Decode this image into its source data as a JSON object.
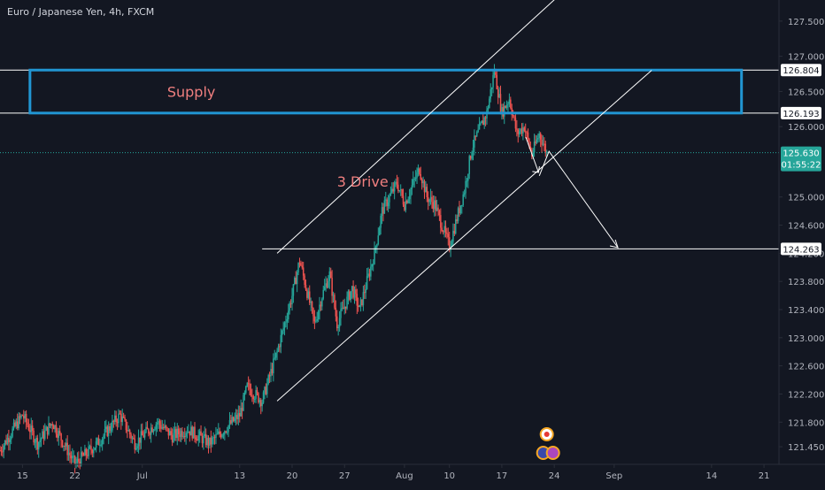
{
  "header": {
    "symbol_title": "Euro / Japanese Yen, 4h, FXCM"
  },
  "colors": {
    "background": "#131722",
    "up_candle": "#26a69a",
    "down_candle": "#ef5350",
    "annotation": "#ffffff",
    "supply_box": "#2196d3",
    "price_tag_bg": "#26a69a",
    "level_tag_bg": "#ffffff",
    "axis_text": "#b2b5be",
    "note_text": "#f07f7f"
  },
  "chart_data": {
    "type": "candlestick",
    "ylim": [
      121.2,
      127.8
    ],
    "y_ticks": [
      "127.500",
      "127.000",
      "126.500",
      "126.000",
      "125.000",
      "124.600",
      "124.200",
      "123.800",
      "123.400",
      "123.000",
      "122.600",
      "122.200",
      "121.800",
      "121.450"
    ],
    "y_tick_values": [
      127.5,
      127.0,
      126.5,
      126.0,
      125.0,
      124.6,
      124.2,
      123.8,
      123.4,
      123.0,
      122.6,
      122.2,
      121.8,
      121.45
    ],
    "x_ticks": [
      "15",
      "22",
      "Jul",
      "13",
      "20",
      "27",
      "Aug",
      "10",
      "17",
      "24",
      "Sep",
      "14",
      "21"
    ],
    "x_tick_values": [
      -12,
      -5,
      4,
      17,
      24,
      31,
      39,
      45,
      52,
      59,
      67,
      80,
      87
    ],
    "xlim": [
      -15,
      89
    ],
    "levels": [
      {
        "label": "126.804",
        "value": 126.804
      },
      {
        "label": "126.193",
        "value": 126.193
      },
      {
        "label": "124.263",
        "value": 124.263
      }
    ],
    "current_price": {
      "label": "125.630",
      "value": 125.63,
      "countdown": "01:55:22"
    },
    "annotations": {
      "supply_label": "Supply",
      "pattern_label": "3 Drive"
    },
    "supply_zone": {
      "top": 126.804,
      "bottom": 126.193,
      "x_start": -11,
      "x_end": 84
    },
    "channel_upper": [
      [
        22,
        124.2
      ],
      [
        60,
        127.9
      ]
    ],
    "channel_lower": [
      [
        22,
        122.1
      ],
      [
        72,
        126.8
      ]
    ],
    "forecast_path": [
      [
        57,
        125.3
      ],
      [
        58.3,
        125.65
      ],
      [
        67.5,
        124.28
      ]
    ],
    "ohlc_anchors": [
      [
        -15,
        121.4
      ],
      [
        -12,
        121.9
      ],
      [
        -10,
        121.5
      ],
      [
        -8,
        121.8
      ],
      [
        -5,
        121.2
      ],
      [
        -2,
        121.5
      ],
      [
        1,
        121.9
      ],
      [
        3,
        121.5
      ],
      [
        6,
        121.8
      ],
      [
        8,
        121.6
      ],
      [
        10,
        121.7
      ],
      [
        13,
        121.5
      ],
      [
        15,
        121.7
      ],
      [
        17,
        121.9
      ],
      [
        18,
        122.3
      ],
      [
        20,
        122.1
      ],
      [
        22,
        122.8
      ],
      [
        24,
        123.6
      ],
      [
        25,
        124.1
      ],
      [
        27,
        123.2
      ],
      [
        28,
        123.6
      ],
      [
        29,
        123.9
      ],
      [
        30,
        123.2
      ],
      [
        32,
        123.7
      ],
      [
        33,
        123.4
      ],
      [
        35,
        124.2
      ],
      [
        36,
        124.8
      ],
      [
        38,
        125.2
      ],
      [
        39,
        124.9
      ],
      [
        41,
        125.4
      ],
      [
        42,
        125.0
      ],
      [
        43,
        124.9
      ],
      [
        44,
        124.6
      ],
      [
        45,
        124.3
      ],
      [
        47,
        125.1
      ],
      [
        48,
        125.7
      ],
      [
        50,
        126.2
      ],
      [
        51,
        126.8
      ],
      [
        52,
        126.2
      ],
      [
        53,
        126.4
      ],
      [
        54,
        125.9
      ],
      [
        55,
        126.0
      ],
      [
        56,
        125.6
      ],
      [
        57,
        125.9
      ],
      [
        58,
        125.63
      ]
    ]
  }
}
